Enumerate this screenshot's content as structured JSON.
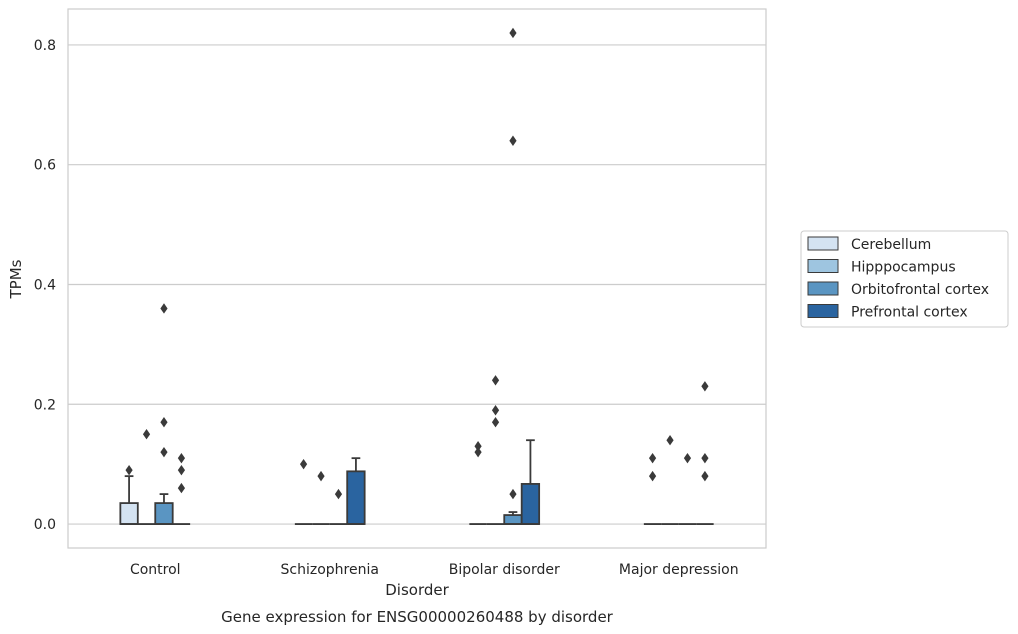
{
  "chart_data": {
    "type": "box",
    "title": "",
    "caption": "Gene expression for ENSG00000260488 by disorder",
    "xlabel": "Disorder",
    "ylabel": "TPMs",
    "ylim": [
      -0.04,
      0.86
    ],
    "yticks": [
      0.0,
      0.2,
      0.4,
      0.6,
      0.8
    ],
    "ytick_labels": [
      "0.0",
      "0.2",
      "0.4",
      "0.6",
      "0.8"
    ],
    "grid": "horizontal",
    "legend_position": "right",
    "categories": [
      "Control",
      "Schizophrenia",
      "Bipolar disorder",
      "Major depression"
    ],
    "series": [
      {
        "name": "Cerebellum",
        "color": "#d4e3f2",
        "boxes": [
          {
            "q1": 0,
            "median": 0,
            "q3": 0.035,
            "whisker_low": 0,
            "whisker_high": 0.08,
            "outliers": [
              0.09
            ]
          },
          {
            "q1": 0,
            "median": 0,
            "q3": 0,
            "whisker_low": 0,
            "whisker_high": 0,
            "outliers": [
              0.1
            ]
          },
          {
            "q1": 0,
            "median": 0,
            "q3": 0,
            "whisker_low": 0,
            "whisker_high": 0,
            "outliers": [
              0.12,
              0.13
            ]
          },
          {
            "q1": 0,
            "median": 0,
            "q3": 0,
            "whisker_low": 0,
            "whisker_high": 0,
            "outliers": [
              0.08,
              0.11
            ]
          }
        ]
      },
      {
        "name": "Hipppocampus",
        "color": "#9ec5e0",
        "boxes": [
          {
            "q1": 0,
            "median": 0,
            "q3": 0,
            "whisker_low": 0,
            "whisker_high": 0,
            "outliers": [
              0.15
            ]
          },
          {
            "q1": 0,
            "median": 0,
            "q3": 0,
            "whisker_low": 0,
            "whisker_high": 0,
            "outliers": [
              0.08
            ]
          },
          {
            "q1": 0,
            "median": 0,
            "q3": 0,
            "whisker_low": 0,
            "whisker_high": 0,
            "outliers": [
              0.17,
              0.19,
              0.24
            ]
          },
          {
            "q1": 0,
            "median": 0,
            "q3": 0,
            "whisker_low": 0,
            "whisker_high": 0,
            "outliers": [
              0.14
            ]
          }
        ]
      },
      {
        "name": "Orbitofrontal cortex",
        "color": "#5a95c2",
        "boxes": [
          {
            "q1": 0,
            "median": 0,
            "q3": 0.035,
            "whisker_low": 0,
            "whisker_high": 0.05,
            "outliers": [
              0.12,
              0.17,
              0.36
            ]
          },
          {
            "q1": 0,
            "median": 0,
            "q3": 0,
            "whisker_low": 0,
            "whisker_high": 0,
            "outliers": [
              0.05
            ]
          },
          {
            "q1": 0,
            "median": 0,
            "q3": 0.015,
            "whisker_low": 0,
            "whisker_high": 0.02,
            "outliers": [
              0.05,
              0.64,
              0.82
            ]
          },
          {
            "q1": 0,
            "median": 0,
            "q3": 0,
            "whisker_low": 0,
            "whisker_high": 0,
            "outliers": [
              0.11
            ]
          }
        ]
      },
      {
        "name": "Prefrontal cortex",
        "color": "#2a64a0",
        "boxes": [
          {
            "q1": 0,
            "median": 0,
            "q3": 0,
            "whisker_low": 0,
            "whisker_high": 0,
            "outliers": [
              0.06,
              0.09,
              0.11
            ]
          },
          {
            "q1": 0,
            "median": 0,
            "q3": 0.088,
            "whisker_low": 0,
            "whisker_high": 0.11,
            "outliers": []
          },
          {
            "q1": 0,
            "median": 0,
            "q3": 0.067,
            "whisker_low": 0,
            "whisker_high": 0.14,
            "outliers": []
          },
          {
            "q1": 0,
            "median": 0,
            "q3": 0,
            "whisker_low": 0,
            "whisker_high": 0,
            "outliers": [
              0.08,
              0.11,
              0.23
            ]
          }
        ]
      }
    ]
  }
}
